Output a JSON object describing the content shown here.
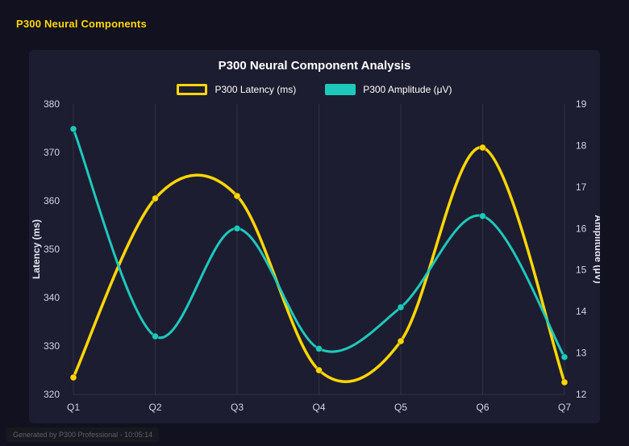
{
  "page": {
    "header_title": "P300 Neural Components",
    "footer_note": "Generated by P300 Professional - 10:05:14"
  },
  "colors": {
    "accent_yellow": "#ffd700",
    "accent_teal": "#1ec9bc",
    "page_bg": "#11111f",
    "panel_bg": "#1d1d31",
    "title_text": "#ffffff",
    "tick_text": "#d2d4e0",
    "grid": "rgba(255,255,255,0.09)"
  },
  "chart_data": {
    "type": "line",
    "title": "P300 Neural Component Analysis",
    "categories": [
      "Q1",
      "Q2",
      "Q3",
      "Q4",
      "Q5",
      "Q6",
      "Q7"
    ],
    "series": [
      {
        "name": "P300 Latency (ms)",
        "axis": "left",
        "color": "#ffd700",
        "legend_swatch": "outline",
        "values": [
          323.5,
          360.5,
          361,
          325,
          331,
          371,
          322.5
        ]
      },
      {
        "name": "P300 Amplitude (μV)",
        "axis": "right",
        "color": "#1ec9bc",
        "legend_swatch": "solid",
        "values": [
          18.4,
          13.4,
          16,
          13.1,
          14.1,
          16.3,
          12.9
        ]
      }
    ],
    "left_axis": {
      "label": "Latency (ms)",
      "min": 320,
      "max": 380,
      "ticks": [
        320,
        330,
        340,
        350,
        360,
        370,
        380
      ]
    },
    "right_axis": {
      "label": "Amplitude (μV)",
      "min": 12,
      "max": 19,
      "ticks": [
        12,
        13,
        14,
        15,
        16,
        17,
        18,
        19
      ]
    },
    "legend_position": "top",
    "grid": "vertical"
  }
}
